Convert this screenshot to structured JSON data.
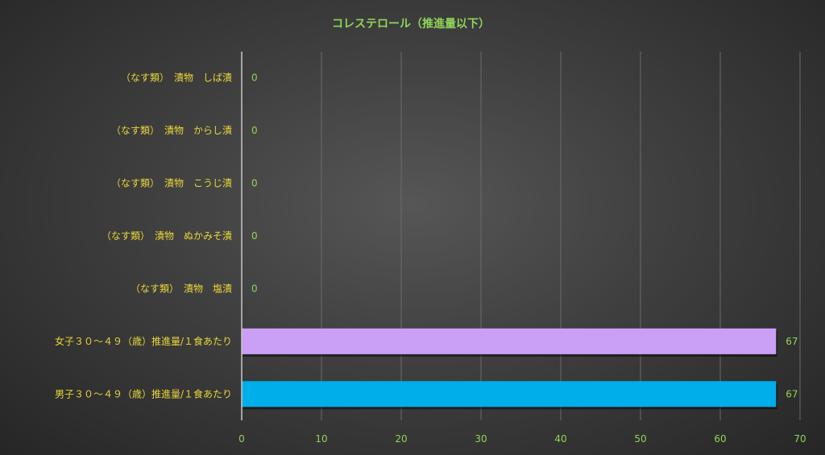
{
  "chart_data": {
    "type": "bar",
    "orientation": "horizontal",
    "title": "コレステロール（推進量以下）",
    "xlabel": "",
    "ylabel": "",
    "xlim": [
      0,
      70
    ],
    "x_ticks": [
      0,
      10,
      20,
      30,
      40,
      50,
      60,
      70
    ],
    "grid": true,
    "categories": [
      "（なす類）　漬物　しば漬",
      "（なす類）　漬物　からし漬",
      "（なす類）　漬物　こうじ漬",
      "（なす類）　漬物　ぬかみそ漬",
      "（なす類）　漬物　塩漬",
      "女子３０～４９（歳）推進量/１食あたり",
      "男子３０～４９（歳）推進量/１食あたり"
    ],
    "values": [
      0,
      0,
      0,
      0,
      0,
      67,
      67
    ],
    "data_labels": [
      "0",
      "0",
      "0",
      "0",
      "0",
      "67",
      "67"
    ],
    "colors": {
      "bars": [
        "#c9a6f2",
        "#c9a6f2",
        "#c9a6f2",
        "#c9a6f2",
        "#c9a6f2",
        "#c9a0f6",
        "#00aeea"
      ],
      "title": "#8fd45a",
      "category_labels": "#e8d63a",
      "tick_labels": "#8fd45a",
      "data_labels": "#8fd45a",
      "gridlines": "#6a6a6a",
      "axis": "#c8c8c8"
    }
  }
}
